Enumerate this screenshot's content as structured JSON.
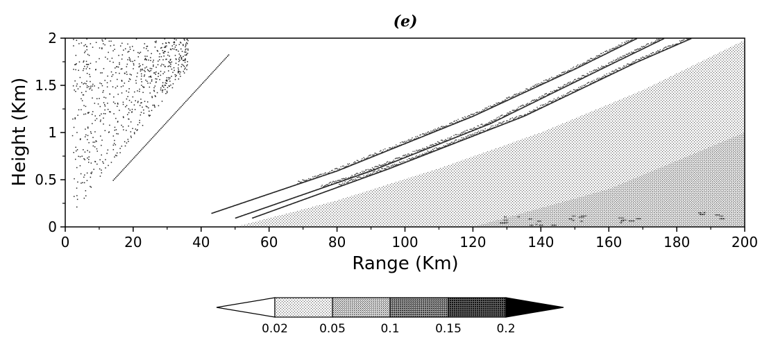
{
  "chart_data": {
    "type": "heatmap",
    "panel_label": "(e)",
    "xlabel": "Range (Km)",
    "ylabel": "Height (Km)",
    "xlim": [
      0,
      200
    ],
    "ylim": [
      0,
      2
    ],
    "x_ticks": [
      0,
      20,
      40,
      60,
      80,
      100,
      120,
      140,
      160,
      180,
      200
    ],
    "x_tick_labels": [
      "0",
      "20",
      "40",
      "60",
      "80",
      "100",
      "120",
      "140",
      "160",
      "180",
      "200"
    ],
    "y_ticks": [
      0,
      0.5,
      1,
      1.5,
      2
    ],
    "y_tick_labels": [
      "0",
      "0.5",
      "1",
      "1.5",
      "2"
    ],
    "colorbar": {
      "levels": [
        0.02,
        0.05,
        0.1,
        0.15,
        0.2
      ],
      "level_labels": [
        "0.02",
        "0.05",
        "0.1",
        "0.15",
        "0.2"
      ],
      "colors": [
        "#ffffff",
        "#e0e0e0",
        "#c2c2c2",
        "#a0a0a0",
        "#6c6c6c",
        "#000000"
      ]
    },
    "regions": [
      {
        "level": "0.02-0.05",
        "lower_curve": [
          [
            50,
            0
          ],
          [
            80,
            0.28
          ],
          [
            110,
            0.62
          ],
          [
            140,
            1.0
          ],
          [
            170,
            1.45
          ],
          [
            200,
            1.98
          ]
        ],
        "upper_curve": "top/right edge"
      },
      {
        "level": "0.05-0.1",
        "lower_curve": [
          [
            120,
            0
          ],
          [
            160,
            0.4
          ],
          [
            200,
            1.0
          ]
        ],
        "upper_curve": "region above within band"
      },
      {
        "level": "0.1-0.15",
        "scattered_near_ground": [
          [
            130,
            0.08
          ],
          [
            140,
            0.05
          ],
          [
            150,
            0.1
          ],
          [
            165,
            0.07
          ],
          [
            190,
            0.12
          ]
        ]
      }
    ],
    "dotted_bands": [
      {
        "description": "near-field scatter",
        "x_range": [
          2,
          36
        ],
        "y_range": [
          0.15,
          2.0
        ]
      },
      {
        "description": "thin line",
        "points": [
          [
            14,
            0.5
          ],
          [
            48,
            1.83
          ]
        ]
      },
      {
        "description": "curved band 1",
        "points": [
          [
            43,
            0.15
          ],
          [
            80,
            0.6
          ],
          [
            120,
            1.18
          ],
          [
            150,
            1.68
          ],
          [
            168,
            2.0
          ]
        ]
      },
      {
        "description": "curved band 2",
        "points": [
          [
            50,
            0.1
          ],
          [
            90,
            0.6
          ],
          [
            125,
            1.1
          ],
          [
            160,
            1.72
          ],
          [
            176,
            2.0
          ]
        ]
      },
      {
        "description": "curved band 3",
        "points": [
          [
            55,
            0.1
          ],
          [
            95,
            0.62
          ],
          [
            135,
            1.18
          ],
          [
            168,
            1.75
          ],
          [
            184,
            2.0
          ]
        ]
      }
    ]
  }
}
